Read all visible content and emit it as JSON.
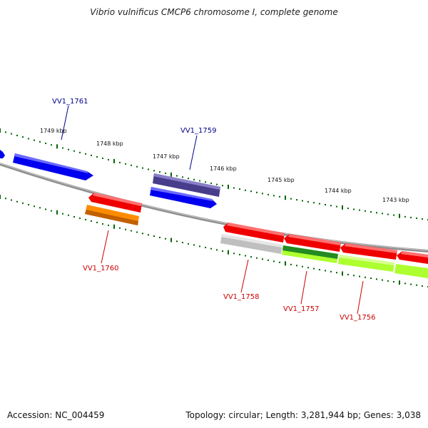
{
  "header": {
    "title": "Vibrio vulnificus CMCP6 chromosome I, complete genome"
  },
  "footer": {
    "accession": "Accession: NC_004459",
    "topology": "Topology: circular; Length: 3,281,944 bp; Genes: 3,038"
  },
  "ticks": [
    {
      "label": "1749 kbp",
      "kbp": 1749
    },
    {
      "label": "1748 kbp",
      "kbp": 1748
    },
    {
      "label": "1747 kbp",
      "kbp": 1747
    },
    {
      "label": "1746 kbp",
      "kbp": 1746
    },
    {
      "label": "1745 kbp",
      "kbp": 1745
    },
    {
      "label": "1744 kbp",
      "kbp": 1744
    },
    {
      "label": "1743 kbp",
      "kbp": 1743
    }
  ],
  "gene_labels": [
    {
      "label": "VV1_1761",
      "color": "#00008b"
    },
    {
      "label": "VV1_1759",
      "color": "#00008b"
    },
    {
      "label": "VV1_1760",
      "color": "#cc0000"
    },
    {
      "label": "VV1_1758",
      "color": "#cc0000"
    },
    {
      "label": "VV1_1757",
      "color": "#cc0000"
    },
    {
      "label": "VV1_1756",
      "color": "#cc0000"
    }
  ],
  "colors": {
    "backbone": "#808080",
    "tick": "#006400",
    "blue_gene": "#0000ee",
    "purple_gene": "#483d8b",
    "red_gene": "#ee0000",
    "orange_gene": "#ff8c00",
    "gray_gene": "#bfbfbf",
    "dark_green_gene": "#228b22",
    "light_green_gene": "#adff2f"
  }
}
